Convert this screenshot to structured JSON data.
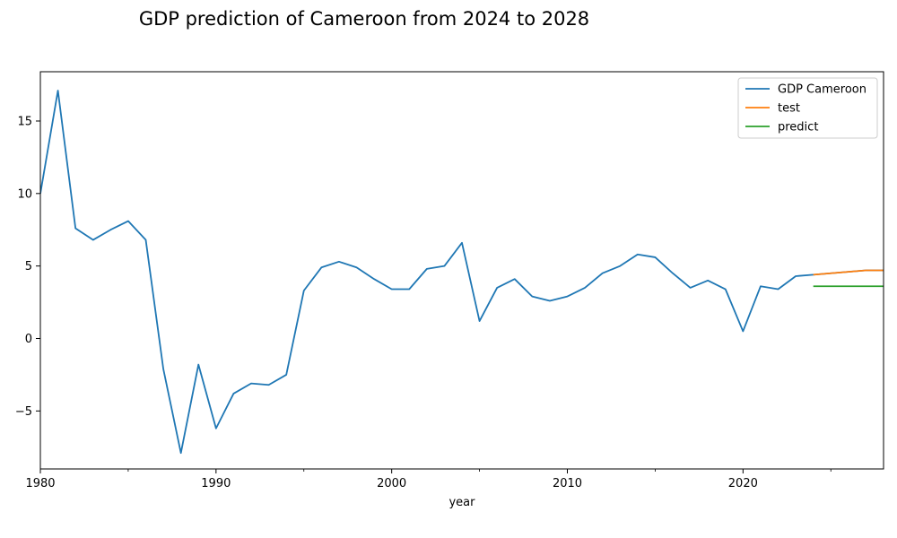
{
  "chart_data": {
    "type": "line",
    "title": "GDP prediction of Cameroon from 2024 to 2028",
    "xlabel": "year",
    "ylabel": "",
    "xlim": [
      1980,
      2028
    ],
    "ylim": [
      -9,
      18.4
    ],
    "x_ticks": [
      {
        "value": 1980,
        "label": "1980"
      },
      {
        "value": 1990,
        "label": "1990"
      },
      {
        "value": 2000,
        "label": "2000"
      },
      {
        "value": 2010,
        "label": "2010"
      },
      {
        "value": 2020,
        "label": "2020"
      }
    ],
    "x_minor_ticks": [
      1985,
      1995,
      2005,
      2015,
      2025
    ],
    "y_ticks": [
      {
        "value": -5,
        "label": "−5"
      },
      {
        "value": 0,
        "label": "0"
      },
      {
        "value": 5,
        "label": "5"
      },
      {
        "value": 10,
        "label": "10"
      },
      {
        "value": 15,
        "label": "15"
      }
    ],
    "grid": false,
    "legend_position": "top-right",
    "series": [
      {
        "name": "GDP Cameroon",
        "color": "#1f77b4",
        "x": [
          1980,
          1981,
          1982,
          1983,
          1984,
          1985,
          1986,
          1987,
          1988,
          1989,
          1990,
          1991,
          1992,
          1993,
          1994,
          1995,
          1996,
          1997,
          1998,
          1999,
          2000,
          2001,
          2002,
          2003,
          2004,
          2005,
          2006,
          2007,
          2008,
          2009,
          2010,
          2011,
          2012,
          2013,
          2014,
          2015,
          2016,
          2017,
          2018,
          2019,
          2020,
          2021,
          2022,
          2023,
          2024,
          2025,
          2026,
          2027,
          2028
        ],
        "y": [
          10.0,
          17.1,
          7.6,
          6.8,
          7.5,
          8.1,
          6.8,
          -2.1,
          -7.9,
          -1.8,
          -6.2,
          -3.8,
          -3.1,
          -3.2,
          -2.5,
          3.3,
          4.9,
          5.3,
          4.9,
          4.1,
          3.4,
          3.4,
          4.8,
          5.0,
          6.6,
          1.2,
          3.5,
          4.1,
          2.9,
          2.6,
          2.9,
          3.5,
          4.5,
          5.0,
          5.8,
          5.6,
          4.5,
          3.5,
          4.0,
          3.4,
          0.5,
          3.6,
          3.4,
          4.3,
          4.4,
          4.5,
          4.6,
          4.7,
          4.7
        ]
      },
      {
        "name": "test",
        "color": "#ff7f0e",
        "x": [
          2024,
          2025,
          2026,
          2027,
          2028
        ],
        "y": [
          4.4,
          4.5,
          4.6,
          4.7,
          4.7
        ]
      },
      {
        "name": "predict",
        "color": "#2ca02c",
        "x": [
          2024,
          2025,
          2026,
          2027,
          2028
        ],
        "y": [
          3.6,
          3.6,
          3.6,
          3.6,
          3.6
        ]
      }
    ]
  }
}
